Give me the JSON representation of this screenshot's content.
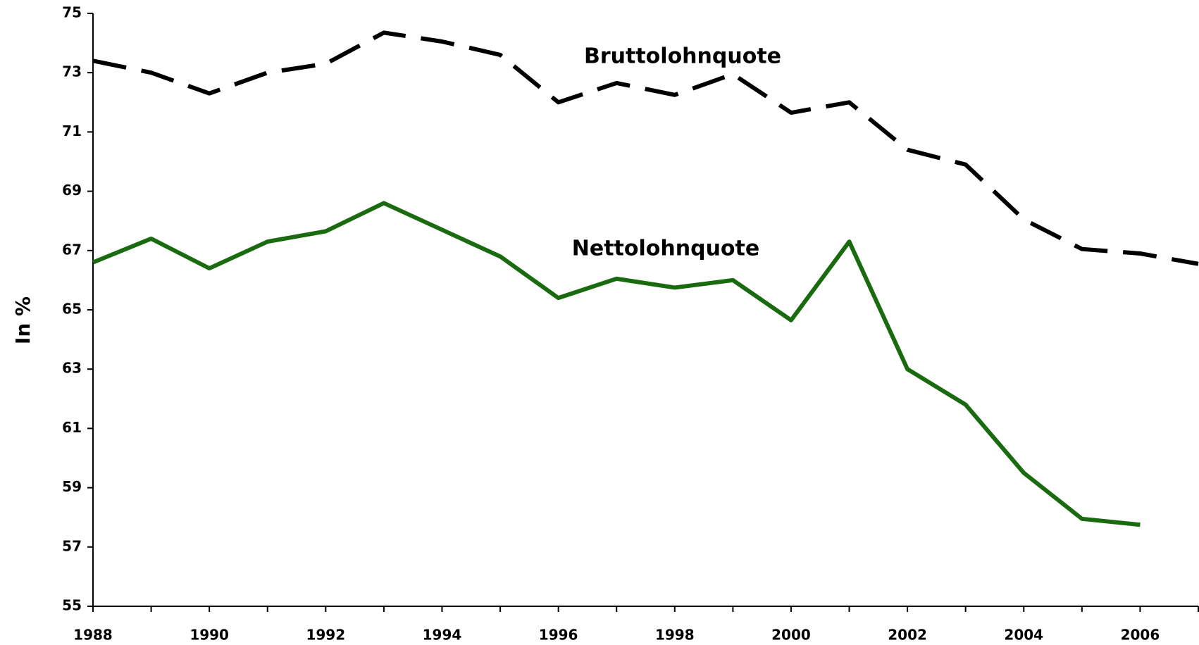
{
  "chart_data": {
    "type": "line",
    "y_label": "In %",
    "annotations": [
      "Bruttolohnquote",
      "Nettolohnquote"
    ],
    "x": [
      1988,
      1989,
      1990,
      1991,
      1992,
      1993,
      1994,
      1995,
      1996,
      1997,
      1998,
      1999,
      2000,
      2001,
      2002,
      2003,
      2004,
      2005,
      2006,
      2007
    ],
    "series": [
      {
        "name": "Bruttolohnquote",
        "color": "#000000",
        "dash": true,
        "values": [
          73.4,
          73.0,
          72.3,
          73.0,
          73.3,
          74.35,
          74.05,
          73.6,
          72.0,
          72.65,
          72.25,
          72.95,
          71.65,
          72.0,
          70.4,
          69.9,
          68.05,
          67.05,
          66.9,
          66.55
        ]
      },
      {
        "name": "Nettolohnquote",
        "color": "#1a6b10",
        "dash": false,
        "values": [
          66.6,
          67.4,
          66.4,
          67.3,
          67.65,
          68.6,
          67.7,
          66.8,
          65.4,
          66.05,
          65.75,
          66.0,
          64.65,
          67.3,
          63.0,
          61.8,
          59.5,
          57.95,
          57.75,
          null
        ]
      }
    ],
    "xlim": [
      1988,
      2007
    ],
    "xticks": [
      1988,
      1990,
      1992,
      1994,
      1996,
      1998,
      2000,
      2002,
      2004,
      2006
    ],
    "ylim": [
      55,
      75
    ],
    "yticks": [
      55,
      57,
      59,
      61,
      63,
      65,
      67,
      69,
      71,
      73,
      75
    ],
    "grid": false
  }
}
